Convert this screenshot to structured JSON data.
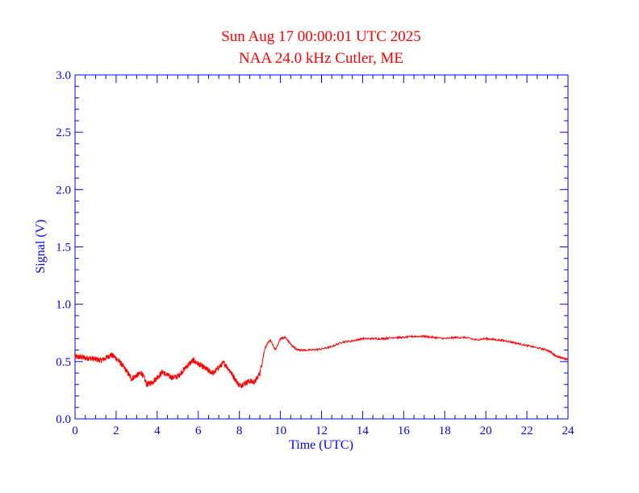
{
  "chart_data": {
    "type": "line",
    "title": "Sun Aug 17 00:00:01 UTC 2025",
    "subtitle": "NAA 24.0 kHz Cutler, ME",
    "xlabel": "Time (UTC)",
    "ylabel": "Signal (V)",
    "xlim": [
      0,
      24
    ],
    "ylim": [
      0,
      3.0
    ],
    "x_ticks": [
      "0",
      "2",
      "4",
      "6",
      "8",
      "10",
      "12",
      "14",
      "16",
      "18",
      "20",
      "22",
      "24"
    ],
    "y_ticks": [
      "0.0",
      "0.5",
      "1.0",
      "1.5",
      "2.0",
      "2.5",
      "3.0"
    ],
    "grid": false,
    "axis_color": "#0000ff",
    "title_color": "#ff0000",
    "series": [
      {
        "color": "#ff0000",
        "x": [
          0,
          0.25,
          0.5,
          0.75,
          1.0,
          1.25,
          1.5,
          1.75,
          2.0,
          2.25,
          2.5,
          2.75,
          3.0,
          3.25,
          3.5,
          3.75,
          4.0,
          4.25,
          4.5,
          4.75,
          5.0,
          5.25,
          5.5,
          5.75,
          6.0,
          6.25,
          6.5,
          6.75,
          7.0,
          7.25,
          7.5,
          7.75,
          8.0,
          8.25,
          8.5,
          8.75,
          9.0,
          9.25,
          9.5,
          9.75,
          10.0,
          10.25,
          10.5,
          10.75,
          11.0,
          11.5,
          12.0,
          12.5,
          13.0,
          13.5,
          14.0,
          14.5,
          15.0,
          15.5,
          16.0,
          16.5,
          17.0,
          17.5,
          18.0,
          18.5,
          19.0,
          19.5,
          20.0,
          20.5,
          21.0,
          21.5,
          22.0,
          22.5,
          23.0,
          23.25,
          23.5,
          23.75,
          24.0
        ],
        "y": [
          0.54,
          0.54,
          0.53,
          0.53,
          0.52,
          0.51,
          0.53,
          0.56,
          0.53,
          0.48,
          0.42,
          0.35,
          0.38,
          0.4,
          0.3,
          0.32,
          0.36,
          0.41,
          0.38,
          0.36,
          0.37,
          0.42,
          0.47,
          0.51,
          0.48,
          0.45,
          0.42,
          0.4,
          0.45,
          0.49,
          0.43,
          0.36,
          0.29,
          0.31,
          0.33,
          0.32,
          0.4,
          0.62,
          0.69,
          0.6,
          0.7,
          0.71,
          0.65,
          0.61,
          0.6,
          0.6,
          0.61,
          0.63,
          0.67,
          0.68,
          0.7,
          0.7,
          0.7,
          0.71,
          0.71,
          0.72,
          0.72,
          0.71,
          0.7,
          0.71,
          0.71,
          0.69,
          0.7,
          0.69,
          0.68,
          0.66,
          0.64,
          0.62,
          0.6,
          0.57,
          0.54,
          0.53,
          0.52
        ]
      }
    ]
  }
}
